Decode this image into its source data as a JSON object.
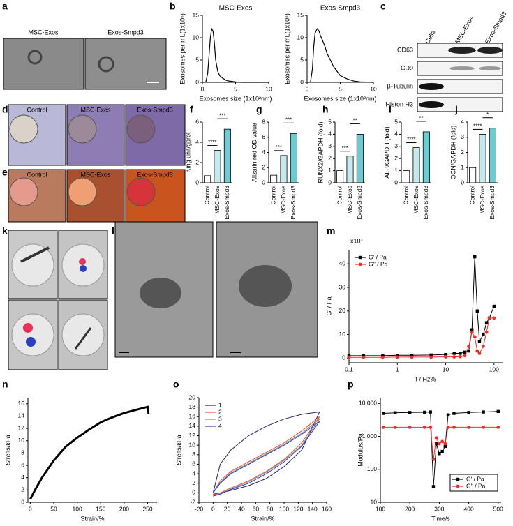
{
  "panel_labels": [
    "a",
    "b",
    "c",
    "d",
    "e",
    "f",
    "g",
    "h",
    "i",
    "j",
    "k",
    "l",
    "m",
    "n",
    "o",
    "p"
  ],
  "figures": {
    "a": {
      "captions": [
        "MSC-Exos",
        "Exos-Smpd3"
      ]
    },
    "c": {
      "columns": [
        "Cells",
        "MSC-Exos",
        "Exos-Smpd3"
      ],
      "rows": [
        "CD63",
        "CD9",
        "β-Tubulin",
        "Histon H3"
      ]
    },
    "d": {
      "captions": [
        "Control",
        "MSC-Exos",
        "Exos-Smpd3"
      ]
    },
    "e": {
      "captions": [
        "Control",
        "MSC-Exos",
        "Exos-Smpd3"
      ]
    }
  },
  "chart_data": [
    {
      "type": "line",
      "title": "MSC-Exos",
      "x_label": "Exosomes size (1x10²nm)",
      "y_label": "Exosomes per mL(1x10⁶)",
      "x": [
        0.5,
        0.8,
        1,
        1.2,
        1.4,
        1.6,
        1.8,
        2,
        2.3,
        2.6,
        3,
        3.5,
        4,
        5,
        6,
        7,
        8,
        10
      ],
      "values": [
        0,
        2,
        6,
        10,
        12,
        11.5,
        9,
        5,
        2.5,
        1.5,
        1,
        0.5,
        0.3,
        0.1,
        0,
        0,
        0,
        0
      ],
      "color": "#000000",
      "xlim": [
        0,
        10
      ],
      "xticks": [
        0,
        5,
        10
      ],
      "ylim": [
        0,
        15
      ],
      "yticks": [
        0,
        5,
        10,
        15
      ]
    },
    {
      "type": "line",
      "title": "Exos-Smpd3",
      "x_label": "Exosomes size (1x10²nm)",
      "y_label": "Exosomes per mL(1x10⁶)",
      "x": [
        0.5,
        0.8,
        1,
        1.2,
        1.5,
        1.8,
        2,
        2.3,
        2.7,
        3,
        3.5,
        4,
        4.5,
        5,
        6,
        7,
        8,
        10
      ],
      "values": [
        0,
        3,
        8,
        11,
        12,
        11.5,
        10.5,
        9.5,
        8,
        6.5,
        5,
        3.5,
        2.5,
        1.5,
        0.8,
        0.3,
        0.1,
        0
      ],
      "color": "#000000",
      "xlim": [
        0,
        10
      ],
      "xticks": [
        0,
        5,
        10
      ],
      "ylim": [
        0,
        15
      ],
      "yticks": [
        0,
        5,
        10,
        15
      ]
    },
    {
      "type": "bar",
      "y_label": "King unit/gprot",
      "categories": [
        "Control",
        "MSC-Exos",
        "Exos-Smpd3"
      ],
      "values": [
        0.7,
        3.2,
        5.3
      ],
      "colors": [
        "#ffffff",
        "#c6ebee",
        "#6ccbd0"
      ],
      "annotations": [
        "****",
        "***"
      ],
      "ylim": [
        0,
        6
      ],
      "yticks": [
        0,
        2,
        4,
        6
      ]
    },
    {
      "type": "bar",
      "y_label": "Alizarin red OD value",
      "categories": [
        "Control",
        "MSC-Exos",
        "Exos-Smpd3"
      ],
      "values": [
        1,
        3.6,
        6.5
      ],
      "colors": [
        "#ffffff",
        "#c6ebee",
        "#6ccbd0"
      ],
      "annotations": [
        "***",
        "***"
      ],
      "ylim": [
        0,
        8
      ],
      "yticks": [
        0,
        2,
        4,
        6,
        8
      ]
    },
    {
      "type": "bar",
      "y_label": "RUNX2/GAPDH (fold)",
      "categories": [
        "Control",
        "MSC-Exos",
        "Exos-Smpd3"
      ],
      "values": [
        1,
        2.2,
        4
      ],
      "colors": [
        "#ffffff",
        "#c6ebee",
        "#6ccbd0"
      ],
      "annotations": [
        "***",
        "**"
      ],
      "ylim": [
        0,
        5
      ],
      "yticks": [
        0,
        1,
        2,
        3,
        4,
        5
      ]
    },
    {
      "type": "bar",
      "y_label": "ALP/GAPDH (fold)",
      "categories": [
        "Control",
        "MSC-Exos",
        "Exos-Smpd3"
      ],
      "values": [
        1,
        2.9,
        4.2
      ],
      "colors": [
        "#ffffff",
        "#c6ebee",
        "#6ccbd0"
      ],
      "annotations": [
        "****",
        "**"
      ],
      "ylim": [
        0,
        5
      ],
      "yticks": [
        0,
        1,
        2,
        3,
        4,
        5
      ]
    },
    {
      "type": "bar",
      "y_label": "OCN/GAPDH (fold)",
      "categories": [
        "Control",
        "MSC-Exos",
        "Exos-Smpd3"
      ],
      "values": [
        1,
        3.2,
        3.6
      ],
      "colors": [
        "#ffffff",
        "#c6ebee",
        "#6ccbd0"
      ],
      "annotations": [
        "****",
        "*"
      ],
      "ylim": [
        0,
        4
      ],
      "yticks": [
        0,
        1,
        2,
        3,
        4
      ]
    },
    {
      "type": "line",
      "x_label": "f / Hz%",
      "y_label": "G' / Pa",
      "y_multiplier": "x10³",
      "xscale": "log",
      "legend": "upper left",
      "x": [
        0.1,
        0.2,
        0.5,
        1,
        2,
        5,
        10,
        15,
        20,
        25,
        30,
        35,
        40,
        45,
        50,
        60,
        70,
        80,
        100
      ],
      "series": [
        {
          "name": "G' / Pa",
          "color": "#000000",
          "marker": "square",
          "values": [
            1,
            1,
            1,
            1.2,
            1.2,
            1.3,
            1.5,
            2,
            2,
            2.5,
            3,
            12,
            43,
            20,
            7,
            10,
            15,
            17,
            22
          ]
        },
        {
          "name": "G'' / Pa",
          "color": "#e8322a",
          "marker": "circle",
          "values": [
            0.3,
            0.3,
            0.3,
            0.4,
            0.4,
            0.4,
            0.5,
            0.5,
            0.6,
            1,
            5,
            11,
            9,
            3,
            2,
            5,
            11,
            17,
            17
          ]
        }
      ],
      "xlim": [
        0.1,
        150
      ],
      "xticks": [
        0.1,
        1,
        10,
        100
      ],
      "ylim": [
        -2,
        46
      ],
      "yticks": [
        0,
        10,
        20,
        30,
        40
      ]
    },
    {
      "type": "line",
      "x_label": "Strain/%",
      "y_label": "Stress/kPa",
      "x": [
        0,
        10,
        25,
        50,
        75,
        100,
        125,
        150,
        175,
        200,
        225,
        250,
        252
      ],
      "values": [
        0.5,
        2,
        4,
        6.8,
        9,
        10.5,
        11.8,
        13,
        13.8,
        14.5,
        15,
        15.5,
        14.3
      ],
      "color": "#000000",
      "xlim": [
        -5,
        270
      ],
      "xticks": [
        0,
        50,
        100,
        150,
        200,
        250
      ],
      "ylim": [
        0,
        17
      ],
      "yticks": [
        0,
        2,
        4,
        6,
        8,
        10,
        12,
        14,
        16
      ]
    },
    {
      "type": "line",
      "x_label": "Strain/%",
      "y_label": "Stress/kPa",
      "legend": "upper left",
      "x": [
        0,
        10,
        25,
        50,
        75,
        100,
        125,
        150,
        150,
        125,
        100,
        75,
        50,
        25,
        10,
        0
      ],
      "series": [
        {
          "name": "1",
          "color": "#222266",
          "values": [
            0,
            6,
            9,
            12,
            14,
            15.5,
            16.5,
            17,
            17,
            9,
            5.5,
            3,
            1.5,
            0.5,
            0,
            -0.3
          ]
        },
        {
          "name": "2",
          "color": "#e8502a",
          "values": [
            0,
            2.5,
            4.5,
            6.5,
            8.5,
            10.5,
            13,
            16,
            16,
            10.5,
            7,
            4.5,
            2.5,
            1,
            0,
            -0.5
          ]
        },
        {
          "name": "3",
          "color": "#888888",
          "values": [
            0,
            2.2,
            4.2,
            6.2,
            8.2,
            10.2,
            12.5,
            15.5,
            15.5,
            10,
            6.8,
            4.3,
            2.3,
            0.8,
            -0.2,
            -0.6
          ]
        },
        {
          "name": "4",
          "color": "#2244cc",
          "values": [
            0,
            2,
            4,
            6,
            8,
            10,
            12.3,
            15,
            15,
            9.8,
            6.5,
            4,
            2,
            0.7,
            -0.3,
            -0.7
          ]
        }
      ],
      "xlim": [
        -20,
        160
      ],
      "xticks": [
        -20,
        0,
        20,
        40,
        60,
        80,
        100,
        120,
        140,
        160
      ],
      "ylim": [
        -2,
        20
      ],
      "yticks": [
        -2,
        0,
        2,
        4,
        6,
        8,
        10,
        12,
        14,
        16,
        18,
        20
      ]
    },
    {
      "type": "line",
      "x_label": "Time/s",
      "y_label": "Modulus/Pa",
      "yscale": "log",
      "legend": "lower right",
      "x": [
        110,
        150,
        200,
        250,
        270,
        280,
        290,
        300,
        310,
        320,
        330,
        350,
        400,
        450,
        500
      ],
      "series": [
        {
          "name": "G' / Pa",
          "color": "#000000",
          "marker": "square",
          "values": [
            5000,
            5200,
            5300,
            5400,
            5500,
            30,
            600,
            300,
            350,
            500,
            4500,
            5000,
            5300,
            5500,
            5700
          ]
        },
        {
          "name": "G'' / Pa",
          "color": "#e8322a",
          "marker": "circle",
          "values": [
            1900,
            1900,
            1900,
            1900,
            1900,
            200,
            900,
            600,
            700,
            600,
            1900,
            1900,
            1900,
            1900,
            1900
          ]
        }
      ],
      "xlim": [
        100,
        510
      ],
      "xticks": [
        100,
        200,
        300,
        400,
        500
      ],
      "ylim": [
        10,
        15000
      ],
      "yticks": [
        10,
        100,
        {
          "value": 1000,
          "label": "1 000"
        },
        {
          "value": 10000,
          "label": "10 000"
        }
      ]
    }
  ]
}
